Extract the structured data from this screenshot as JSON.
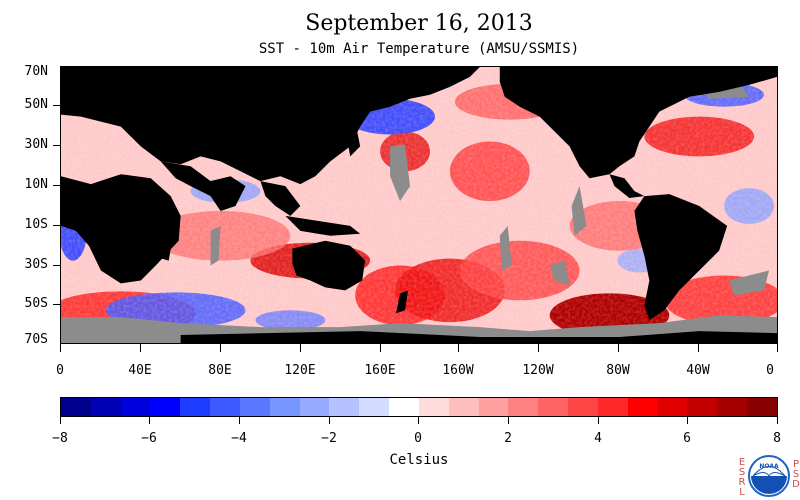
{
  "title": "September 16, 2013",
  "subtitle": "SST - 10m Air Temperature (AMSU/SSMIS)",
  "lat_labels": [
    "70N",
    "50N",
    "30N",
    "10N",
    "10S",
    "30S",
    "50S",
    "70S"
  ],
  "lon_labels": [
    "0",
    "40E",
    "80E",
    "120E",
    "160E",
    "160W",
    "120W",
    "80W",
    "40W",
    "0"
  ],
  "colorbar": {
    "unit_label": "Celsius",
    "tick_labels": [
      "−8",
      "−6",
      "−4",
      "−2",
      "0",
      "2",
      "4",
      "6",
      "8"
    ],
    "min": -8,
    "max": 8,
    "colors": [
      "#00008e",
      "#0000b4",
      "#0000dc",
      "#0000ff",
      "#1e3cff",
      "#3c5aff",
      "#5a78ff",
      "#7896ff",
      "#96aaff",
      "#b4c3ff",
      "#d2dcff",
      "#ffffff",
      "#ffdcdc",
      "#ffbebe",
      "#ffa0a0",
      "#ff8282",
      "#ff6464",
      "#ff4646",
      "#ff2828",
      "#ff0000",
      "#e10000",
      "#c30000",
      "#a50000",
      "#870000"
    ]
  },
  "map": {
    "land_color": "#000000",
    "missing_color": "#8c8c8c",
    "ocean_cool_color": "#4a5cff",
    "ocean_warm_color": "#ff2020"
  },
  "logo": {
    "left_text": "ESRL",
    "right_text": "PSD",
    "name": "NOAA",
    "colors": {
      "ring": "#1e64c8",
      "sea": "#1450b4",
      "gull": "#ffffff"
    }
  }
}
